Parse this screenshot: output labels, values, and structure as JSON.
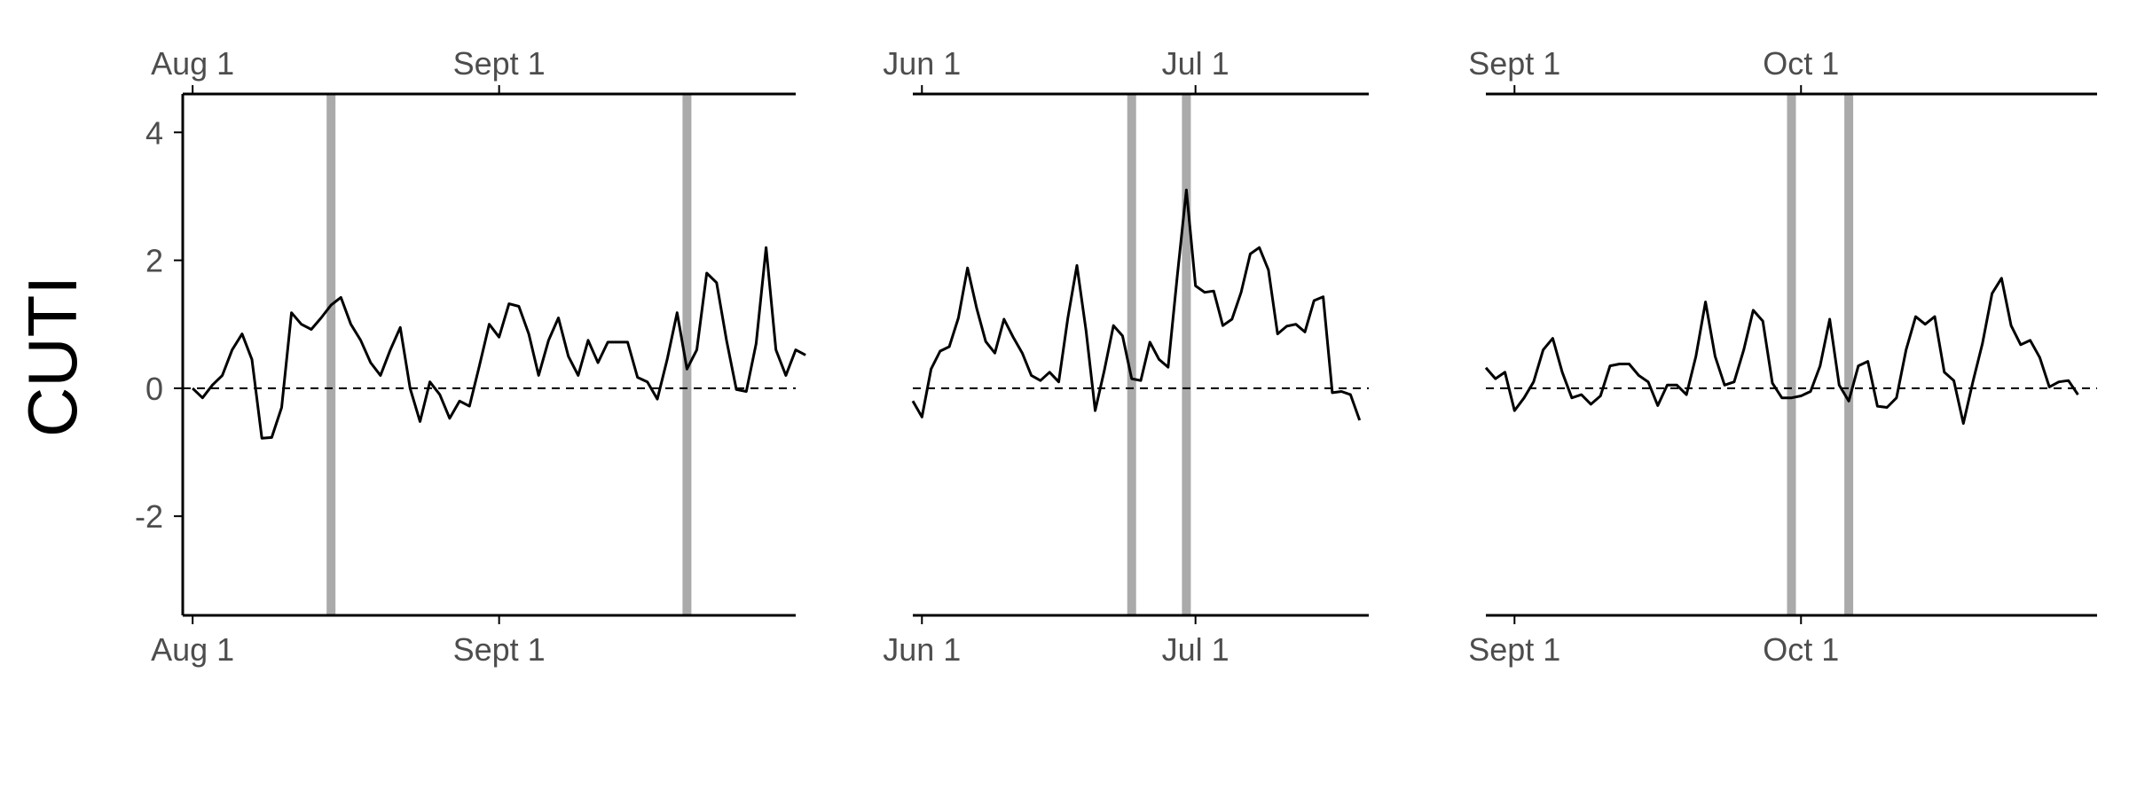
{
  "chart_data": {
    "type": "line",
    "ylabel": "CUTI",
    "ylim": [
      -3.55,
      4.6
    ],
    "y_ticks": [
      4,
      2,
      0,
      -2
    ],
    "y_tick_labels": [
      "4",
      "2",
      "0",
      "-2"
    ],
    "zero_reference_line": "dashed",
    "grid": false,
    "colors": {
      "line": "#000000",
      "highlight": "#aaaaaa",
      "axis": "#000000",
      "tick_text": "#4d4d4d"
    },
    "panels": [
      {
        "x_start": "2014-07-31",
        "x_end": "2014-10-01",
        "x_ticks": [
          {
            "date": "2014-08-01",
            "label": "Aug 1"
          },
          {
            "date": "2014-09-01",
            "label": "Sept 1"
          }
        ],
        "highlights": [
          "2014-08-15",
          "2014-09-20"
        ],
        "series": [
          {
            "start": "2014-08-01",
            "values": [
              0.0,
              -0.15,
              0.05,
              0.2,
              0.6,
              0.85,
              0.45,
              -0.78,
              -0.77,
              -0.3,
              1.18,
              1.0,
              0.92,
              1.1,
              1.3,
              1.42,
              1.0,
              0.75,
              0.4,
              0.2,
              0.6,
              0.95,
              0.0,
              -0.52,
              0.1,
              -0.1,
              -0.47,
              -0.2,
              -0.28,
              0.35,
              1.0,
              0.8,
              1.32,
              1.28,
              0.85,
              0.2,
              0.75,
              1.1,
              0.5,
              0.2,
              0.75,
              0.4,
              0.72,
              0.72,
              0.72,
              0.17,
              0.1,
              -0.17,
              0.45,
              1.18,
              0.3,
              0.6,
              1.8,
              1.65,
              0.75,
              -0.02,
              -0.05,
              0.7,
              2.2,
              0.6,
              0.2,
              0.6,
              0.52
            ]
          }
        ]
      },
      {
        "x_start": "2014-05-31",
        "x_end": "2014-07-20",
        "x_ticks": [
          {
            "date": "2014-06-01",
            "label": "Jun 1"
          },
          {
            "date": "2014-07-01",
            "label": "Jul 1"
          }
        ],
        "highlights": [
          "2014-06-24",
          "2014-06-30"
        ],
        "series": [
          {
            "start": "2014-05-31",
            "values": [
              -0.2,
              -0.45,
              0.3,
              0.58,
              0.65,
              1.1,
              1.88,
              1.25,
              0.73,
              0.55,
              1.08,
              0.8,
              0.55,
              0.2,
              0.12,
              0.25,
              0.1,
              1.1,
              1.92,
              0.9,
              -0.35,
              0.28,
              0.98,
              0.82,
              0.15,
              0.12,
              0.72,
              0.45,
              0.33,
              1.75,
              3.1,
              1.6,
              1.5,
              1.52,
              0.98,
              1.08,
              1.5,
              2.1,
              2.2,
              1.85,
              0.85,
              0.97,
              1.0,
              0.88,
              1.37,
              1.43,
              -0.07,
              -0.05,
              -0.1,
              -0.5
            ]
          }
        ]
      },
      {
        "x_start": "2014-08-29",
        "x_end": "2014-11-01",
        "x_ticks": [
          {
            "date": "2014-09-01",
            "label": "Sept 1"
          },
          {
            "date": "2014-10-01",
            "label": "Oct 1"
          }
        ],
        "highlights": [
          "2014-09-30",
          "2014-10-06"
        ],
        "series": [
          {
            "start": "2014-08-29",
            "values": [
              0.32,
              0.15,
              0.25,
              -0.35,
              -0.15,
              0.1,
              0.6,
              0.78,
              0.25,
              -0.15,
              -0.1,
              -0.25,
              -0.12,
              0.35,
              0.38,
              0.38,
              0.2,
              0.1,
              -0.27,
              0.05,
              0.05,
              -0.1,
              0.5,
              1.35,
              0.5,
              0.05,
              0.1,
              0.6,
              1.22,
              1.05,
              0.08,
              -0.15,
              -0.15,
              -0.12,
              -0.05,
              0.35,
              1.08,
              0.05,
              -0.2,
              0.35,
              0.42,
              -0.28,
              -0.3,
              -0.15,
              0.6,
              1.12,
              1.0,
              1.12,
              0.25,
              0.12,
              -0.55,
              0.1,
              0.7,
              1.48,
              1.72,
              0.98,
              0.68,
              0.75,
              0.48,
              0.02,
              0.1,
              0.12,
              -0.1
            ]
          }
        ]
      }
    ]
  }
}
